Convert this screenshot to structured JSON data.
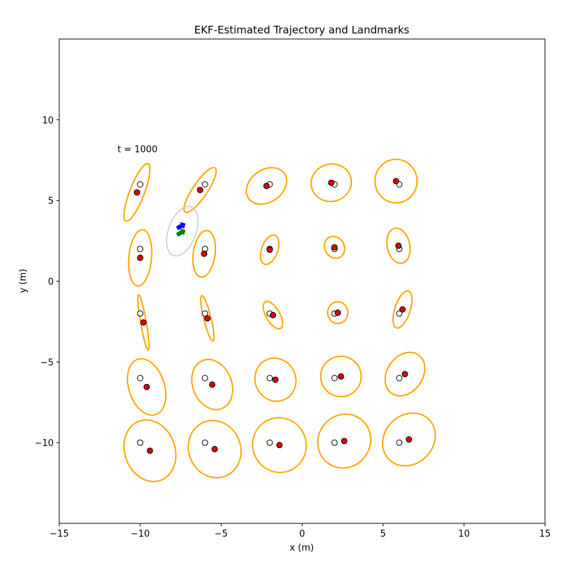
{
  "chart_data": {
    "type": "scatter",
    "title": "EKF-Estimated Trajectory and Landmarks",
    "xlabel": "x (m)",
    "ylabel": "y (m)",
    "xlim": [
      -15,
      15
    ],
    "ylim": [
      -15,
      15
    ],
    "xticks": [
      -15,
      -10,
      -5,
      0,
      5,
      10,
      15
    ],
    "yticks": [
      -10,
      -5,
      0,
      5,
      10
    ],
    "grid": false,
    "annotation": {
      "text": "t = 1000",
      "x": -11.4,
      "y": 8.2
    },
    "colors": {
      "true_landmark_fill": "#ffffff",
      "estimated_landmark_fill": "#e00000",
      "landmark_ellipse": "#ffa500",
      "robot_ellipse": "#c8c8c8",
      "true_pose": "#0000ff",
      "estimated_pose": "#008000"
    },
    "landmarks": [
      {
        "true": [
          -10,
          6
        ],
        "est": [
          -10.2,
          5.5
        ],
        "ellipse": {
          "w": 0.9,
          "h": 3.8,
          "angle": 21
        }
      },
      {
        "true": [
          -6,
          6
        ],
        "est": [
          -6.3,
          5.65
        ],
        "ellipse": {
          "w": 0.9,
          "h": 3.3,
          "angle": 34
        }
      },
      {
        "true": [
          -2,
          6
        ],
        "est": [
          -2.2,
          5.9
        ],
        "ellipse": {
          "w": 2.0,
          "h": 2.7,
          "angle": 55
        }
      },
      {
        "true": [
          2,
          6
        ],
        "est": [
          1.8,
          6.1
        ],
        "ellipse": {
          "w": 2.3,
          "h": 2.5,
          "angle": 75
        }
      },
      {
        "true": [
          6,
          6
        ],
        "est": [
          5.8,
          6.2
        ],
        "ellipse": {
          "w": 2.6,
          "h": 2.7,
          "angle": 0
        }
      },
      {
        "true": [
          -10,
          2
        ],
        "est": [
          -10,
          1.45
        ],
        "ellipse": {
          "w": 1.4,
          "h": 3.5,
          "angle": 5
        }
      },
      {
        "true": [
          -6,
          2
        ],
        "est": [
          -6.05,
          1.7
        ],
        "ellipse": {
          "w": 1.35,
          "h": 2.9,
          "angle": 8
        }
      },
      {
        "true": [
          -2,
          2
        ],
        "est": [
          -2,
          1.95
        ],
        "ellipse": {
          "w": 1.0,
          "h": 1.9,
          "angle": 20
        }
      },
      {
        "true": [
          2,
          2
        ],
        "est": [
          2,
          2.1
        ],
        "ellipse": {
          "w": 1.4,
          "h": 1.2,
          "angle": 60
        }
      },
      {
        "true": [
          6,
          2
        ],
        "est": [
          5.95,
          2.2
        ],
        "ellipse": {
          "w": 1.4,
          "h": 2.2,
          "angle": -12
        }
      },
      {
        "true": [
          -10,
          -2
        ],
        "est": [
          -9.8,
          -2.55
        ],
        "ellipse": {
          "w": 0.35,
          "h": 3.5,
          "angle": -10
        }
      },
      {
        "true": [
          -6,
          -2
        ],
        "est": [
          -5.85,
          -2.3
        ],
        "ellipse": {
          "w": 0.45,
          "h": 2.9,
          "angle": -14
        }
      },
      {
        "true": [
          -2,
          -2
        ],
        "est": [
          -1.8,
          -2.1
        ],
        "ellipse": {
          "w": 0.85,
          "h": 1.9,
          "angle": -30
        }
      },
      {
        "true": [
          2,
          -2
        ],
        "est": [
          2.2,
          -1.95
        ],
        "ellipse": {
          "w": 1.25,
          "h": 1.35,
          "angle": 0
        }
      },
      {
        "true": [
          6,
          -2
        ],
        "est": [
          6.2,
          -1.75
        ],
        "ellipse": {
          "w": 0.95,
          "h": 2.4,
          "angle": 18
        }
      },
      {
        "true": [
          -10,
          -6
        ],
        "est": [
          -9.6,
          -6.55
        ],
        "ellipse": {
          "w": 2.2,
          "h": 3.6,
          "angle": -18
        }
      },
      {
        "true": [
          -6,
          -6
        ],
        "est": [
          -5.55,
          -6.4
        ],
        "ellipse": {
          "w": 2.4,
          "h": 3.2,
          "angle": -22
        }
      },
      {
        "true": [
          -2,
          -6
        ],
        "est": [
          -1.65,
          -6.1
        ],
        "ellipse": {
          "w": 2.5,
          "h": 2.7,
          "angle": -25
        }
      },
      {
        "true": [
          2,
          -6
        ],
        "est": [
          2.4,
          -5.9
        ],
        "ellipse": {
          "w": 2.5,
          "h": 2.5,
          "angle": 0
        }
      },
      {
        "true": [
          6,
          -6
        ],
        "est": [
          6.35,
          -5.75
        ],
        "ellipse": {
          "w": 2.2,
          "h": 2.9,
          "angle": 35
        }
      },
      {
        "true": [
          -10,
          -10
        ],
        "est": [
          -9.4,
          -10.5
        ],
        "ellipse": {
          "w": 3.1,
          "h": 3.9,
          "angle": -20
        }
      },
      {
        "true": [
          -6,
          -10
        ],
        "est": [
          -5.4,
          -10.4
        ],
        "ellipse": {
          "w": 3.2,
          "h": 3.6,
          "angle": -22
        }
      },
      {
        "true": [
          -2,
          -10
        ],
        "est": [
          -1.4,
          -10.15
        ],
        "ellipse": {
          "w": 3.3,
          "h": 3.4,
          "angle": -25
        }
      },
      {
        "true": [
          2,
          -10
        ],
        "est": [
          2.6,
          -9.9
        ],
        "ellipse": {
          "w": 3.2,
          "h": 3.4,
          "angle": 35
        }
      },
      {
        "true": [
          6,
          -10
        ],
        "est": [
          6.6,
          -9.8
        ],
        "ellipse": {
          "w": 3.0,
          "h": 3.5,
          "angle": 45
        }
      }
    ],
    "robot": {
      "true_pose": {
        "x": -7.5,
        "y": 3.4,
        "heading_deg": 30
      },
      "estimated_pose": {
        "x": -7.5,
        "y": 3.0,
        "heading_deg": 30
      },
      "ellipse": {
        "cx": -7.4,
        "cy": 3.1,
        "w": 1.7,
        "h": 3.2,
        "angle": 20
      }
    }
  }
}
